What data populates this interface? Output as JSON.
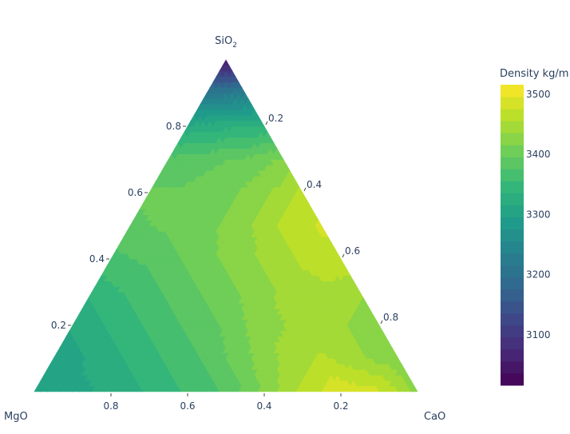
{
  "chart_data": {
    "type": "ternary-contour",
    "axes": {
      "a": {
        "title": "SiO",
        "title_sub": "2",
        "ticks": [
          "0.2",
          "0.4",
          "0.6",
          "0.8"
        ]
      },
      "b": {
        "title": "MgO",
        "ticks": [
          "0.8",
          "0.6",
          "0.4",
          "0.2"
        ]
      },
      "c": {
        "title": "CaO",
        "ticks": [
          "0.2",
          "0.4",
          "0.6",
          "0.8"
        ]
      }
    },
    "grid_step": 0.1,
    "values_by_a_then_c": [
      [
        3300,
        3310,
        3320,
        3340,
        3360,
        3380,
        3420,
        3460,
        3490,
        3480,
        3430
      ],
      [
        3300,
        3320,
        3340,
        3360,
        3380,
        3410,
        3440,
        3460,
        3440,
        3420
      ],
      [
        3320,
        3340,
        3360,
        3380,
        3400,
        3430,
        3440,
        3440,
        3420
      ],
      [
        3340,
        3360,
        3380,
        3400,
        3420,
        3440,
        3450,
        3440
      ],
      [
        3370,
        3380,
        3400,
        3420,
        3440,
        3460,
        3470
      ],
      [
        3390,
        3400,
        3410,
        3430,
        3460,
        3480
      ],
      [
        3400,
        3400,
        3410,
        3430,
        3460
      ],
      [
        3380,
        3390,
        3400,
        3420
      ],
      [
        3320,
        3330,
        3340
      ],
      [
        3220,
        3230
      ],
      [
        3040
      ]
    ],
    "contour_step": 20,
    "colorbar": {
      "title": "Density kg/m",
      "range": [
        3016,
        3516
      ],
      "ticks": [
        "3100",
        "3200",
        "3300",
        "3400",
        "3500"
      ],
      "tick_values": [
        3100,
        3200,
        3300,
        3400,
        3500
      ]
    },
    "colorscale": [
      "#440154",
      "#482878",
      "#3e4989",
      "#31688e",
      "#26828e",
      "#1f9e89",
      "#35b779",
      "#6ece58",
      "#b5de2b",
      "#fde725"
    ],
    "line_color": "#a0a0a0"
  }
}
